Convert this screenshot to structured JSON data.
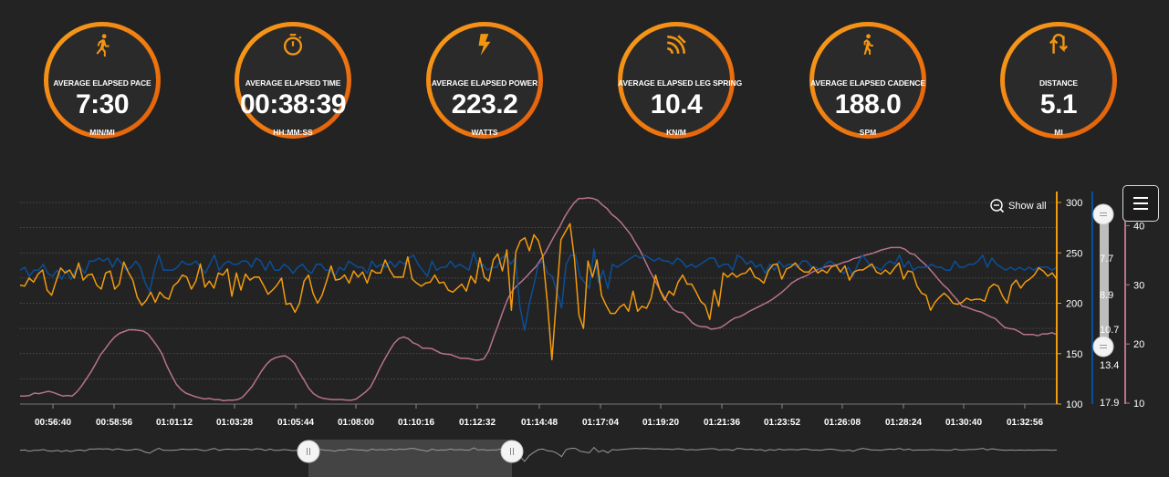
{
  "colors": {
    "accent": "#f29511",
    "pace_series": "#0a4f9a",
    "power_series": "#f29b0f",
    "cadence_series": "#b8728e",
    "grid": "#5a5a5a"
  },
  "metrics": [
    {
      "icon": "runner-icon",
      "label": "AVERAGE ELAPSED PACE",
      "value": "7:30",
      "unit": "MIN/MI"
    },
    {
      "icon": "stopwatch-icon",
      "label": "AVERAGE ELAPSED TIME",
      "value": "00:38:39",
      "unit": "HH:MM:SS"
    },
    {
      "icon": "lightning-icon",
      "label": "AVERAGE ELAPSED POWER",
      "value": "223.2",
      "unit": "WATTS"
    },
    {
      "icon": "signal-arcs-icon",
      "label": "AVERAGE ELAPSED LEG SPRING",
      "value": "10.4",
      "unit": "KN/M"
    },
    {
      "icon": "walker-icon",
      "label": "AVERAGE ELAPSED CADENCE",
      "value": "188.0",
      "unit": "SPM"
    },
    {
      "icon": "swap-arrows-icon",
      "label": "DISTANCE",
      "value": "5.1",
      "unit": "MI"
    }
  ],
  "chart": {
    "show_all_label": "Show all",
    "menu_icon": "hamburger-menu-icon"
  },
  "chart_data": {
    "type": "line",
    "x_ticks": [
      "00:56:40",
      "00:58:56",
      "01:01:12",
      "01:03:28",
      "01:05:44",
      "01:08:00",
      "01:10:16",
      "01:12:32",
      "01:14:48",
      "01:17:04",
      "01:19:20",
      "01:21:36",
      "01:23:52",
      "01:26:08",
      "01:28:24",
      "01:30:40",
      "01:32:56"
    ],
    "y_axes": [
      {
        "side": "right",
        "color": "orange",
        "ticks": [
          "300",
          "250",
          "200",
          "150",
          "100"
        ],
        "range": [
          100,
          300
        ]
      },
      {
        "side": "right",
        "color": "blue",
        "ticks": [
          "7.7",
          "8.9",
          "10.7",
          "13.4",
          "17.9"
        ]
      },
      {
        "side": "right",
        "color": "pink",
        "ticks": [
          "40",
          "30",
          "20",
          "10"
        ],
        "range": [
          10,
          45
        ]
      }
    ],
    "grid": true,
    "series": [
      {
        "axis": "orange",
        "values": [
          218,
          217,
          225,
          221,
          229,
          233,
          213,
          208,
          222,
          235,
          230,
          233,
          225,
          240,
          223,
          228,
          229,
          218,
          214,
          230,
          232,
          214,
          219,
          241,
          231,
          223,
          206,
          198,
          203,
          211,
          201,
          211,
          206,
          204,
          217,
          221,
          228,
          226,
          214,
          222,
          239,
          216,
          222,
          215,
          230,
          228,
          234,
          207,
          230,
          213,
          229,
          223,
          226,
          226,
          218,
          209,
          213,
          218,
          225,
          199,
          200,
          191,
          200,
          222,
          228,
          210,
          200,
          208,
          222,
          237,
          223,
          224,
          228,
          220,
          232,
          226,
          231,
          220,
          233,
          230,
          230,
          243,
          233,
          226,
          226,
          226,
          246,
          224,
          220,
          217,
          220,
          221,
          228,
          220,
          221,
          213,
          211,
          215,
          219,
          212,
          227,
          220,
          245,
          226,
          222,
          243,
          249,
          232,
          253,
          193,
          251,
          262,
          265,
          252,
          268,
          262,
          246,
          200,
          144,
          205,
          263,
          271,
          279,
          244,
          188,
          175,
          242,
          226,
          243,
          208,
          198,
          190,
          190,
          196,
          199,
          192,
          212,
          192,
          197,
          195,
          205,
          228,
          212,
          203,
          212,
          208,
          221,
          228,
          219,
          219,
          211,
          202,
          198,
          184,
          213,
          197,
          230,
          226,
          230,
          226,
          229,
          230,
          235,
          226,
          224,
          220,
          232,
          238,
          239,
          224,
          234,
          236,
          240,
          234,
          231,
          231,
          236,
          230,
          233,
          230,
          236,
          238,
          231,
          237,
          223,
          231,
          233,
          233,
          236,
          239,
          231,
          229,
          233,
          229,
          235,
          240,
          224,
          232,
          231,
          217,
          210,
          208,
          193,
          201,
          206,
          210,
          206,
          200,
          199,
          201,
          205,
          203,
          204,
          204,
          202,
          215,
          219,
          217,
          207,
          200,
          218,
          223,
          215,
          221,
          224,
          228,
          235,
          232,
          227,
          230,
          224
        ]
      },
      {
        "axis": "blue",
        "values": [
          8.1,
          8.0,
          8.3,
          8.1,
          8.1,
          7.9,
          8.2,
          8.3,
          8.1,
          8.4,
          8.1,
          8.4,
          8.1,
          8.0,
          8.2,
          7.8,
          7.8,
          7.7,
          7.8,
          7.7,
          8.0,
          7.7,
          7.9,
          8.1,
          8.0,
          7.8,
          8.0,
          8.5,
          8.8,
          8.1,
          7.6,
          8.1,
          8.1,
          8.1,
          8.0,
          7.8,
          7.9,
          7.9,
          7.8,
          8.0,
          8.2,
          7.9,
          7.6,
          8.1,
          7.9,
          7.8,
          7.9,
          7.9,
          7.8,
          7.8,
          8.0,
          7.7,
          7.8,
          8.1,
          7.8,
          8.1,
          8.1,
          7.9,
          8.0,
          8.2,
          8.0,
          7.9,
          8.1,
          8.2,
          7.9,
          7.9,
          8.1,
          8.1,
          8.3,
          8.0,
          8.1,
          7.8,
          7.9,
          8.0,
          8.0,
          8.2,
          7.8,
          8.0,
          7.9,
          8.0,
          7.8,
          8.0,
          7.8,
          7.9,
          7.7,
          7.6,
          7.9,
          8.1,
          8.3,
          7.8,
          8.1,
          8.0,
          8.0,
          7.8,
          8.0,
          7.9,
          8.0,
          8.1,
          7.5,
          8.0,
          7.9,
          8.1,
          8.0,
          8.0,
          7.7,
          7.6,
          7.9,
          7.7,
          9.5,
          10.8,
          9.4,
          8.6,
          7.9,
          7.8,
          8.2,
          8.3,
          8.8,
          9.6,
          7.9,
          7.6,
          7.6,
          8.3,
          8.5,
          8.7,
          7.4,
          8.5,
          8.1,
          8.7,
          7.9,
          8.0,
          7.9,
          7.8,
          7.7,
          7.6,
          7.7,
          7.6,
          7.7,
          7.8,
          7.7,
          7.8,
          7.8,
          7.9,
          7.7,
          7.8,
          8.0,
          7.9,
          8.0,
          7.9,
          7.8,
          7.7,
          7.7,
          8.0,
          7.9,
          7.9,
          8.1,
          7.6,
          7.7,
          7.9,
          7.8,
          8.0,
          7.9,
          8.2,
          7.9,
          8.1,
          7.8,
          8.0,
          7.9,
          7.9,
          8.0,
          7.8,
          7.8,
          8.0,
          8.0,
          8.1,
          7.9,
          7.8,
          7.9,
          8.1,
          8.2,
          8.0,
          8.3,
          7.9,
          7.6,
          7.8,
          8.0,
          8.0,
          8.1,
          7.9,
          7.8,
          7.9,
          7.6,
          8.0,
          7.8,
          8.1,
          8.0,
          8.0,
          8.0,
          7.9,
          8.0,
          8.0,
          8.1,
          8.1,
          7.8,
          8.0,
          8.0,
          7.9,
          7.9,
          7.8,
          7.6,
          8.0,
          7.7,
          7.9,
          8.0,
          8.1,
          8.0,
          8.1,
          8.0,
          8.1,
          8.0,
          8.1,
          8.0,
          8.0,
          8.0,
          8.1,
          8.0
        ]
      },
      {
        "axis": "pink",
        "values": [
          11.2,
          11.2,
          11.3,
          11.7,
          11.6,
          11.8,
          12.0,
          11.8,
          11.5,
          11.2,
          11.3,
          11.2,
          11.9,
          12.9,
          14.1,
          15.3,
          16.7,
          18.2,
          19.2,
          20.3,
          21.2,
          21.8,
          22.1,
          22.4,
          22.4,
          22.3,
          22.2,
          21.7,
          20.7,
          19.6,
          18.3,
          16.3,
          14.7,
          13.2,
          12.3,
          11.7,
          11.4,
          11.1,
          10.9,
          10.7,
          10.8,
          10.6,
          10.6,
          10.4,
          10.5,
          10.5,
          10.6,
          11.0,
          11.9,
          12.8,
          14.1,
          15.4,
          16.5,
          17.3,
          17.7,
          17.9,
          18.0,
          17.5,
          16.7,
          15.2,
          13.9,
          12.5,
          11.6,
          11.1,
          10.8,
          10.7,
          10.6,
          10.6,
          10.6,
          10.5,
          10.5,
          10.7,
          11.3,
          11.9,
          12.7,
          14.2,
          15.9,
          17.4,
          18.8,
          20.1,
          20.9,
          21.2,
          20.9,
          20.2,
          19.9,
          19.3,
          19.3,
          19.2,
          18.8,
          18.4,
          18.3,
          18.2,
          17.9,
          17.6,
          17.6,
          17.5,
          17.3,
          17.3,
          17.5,
          18.8,
          21.1,
          23.2,
          25.5,
          27.6,
          29.0,
          29.9,
          30.6,
          31.4,
          32.3,
          33.1,
          34.3,
          35.5,
          37.0,
          38.5,
          39.8,
          41.4,
          42.7,
          43.8,
          44.6,
          44.6,
          44.7,
          44.6,
          44.3,
          43.5,
          42.9,
          41.9,
          41.3,
          40.5,
          39.5,
          38.5,
          37.1,
          35.8,
          34.1,
          32.4,
          30.9,
          29.4,
          28.0,
          26.8,
          25.8,
          25.4,
          25.3,
          24.5,
          23.6,
          23.1,
          22.9,
          22.9,
          22.5,
          22.6,
          22.8,
          23.3,
          23.9,
          24.4,
          24.6,
          25.0,
          25.5,
          25.9,
          26.3,
          26.7,
          27.1,
          27.6,
          28.2,
          28.8,
          29.5,
          30.3,
          30.8,
          31.2,
          31.5,
          32.0,
          32.4,
          32.7,
          33.0,
          33.2,
          33.2,
          33.5,
          33.8,
          34.0,
          34.4,
          34.6,
          34.9,
          35.1,
          35.3,
          35.6,
          35.9,
          36.1,
          36.3,
          36.3,
          36.3,
          36.0,
          35.3,
          35.1,
          34.3,
          33.6,
          32.8,
          31.9,
          30.9,
          30.0,
          29.3,
          28.3,
          27.4,
          26.4,
          26.2,
          25.9,
          25.6,
          25.4,
          25.0,
          24.6,
          24.3,
          23.5,
          22.8,
          22.6,
          22.5,
          22.1,
          21.6,
          21.6,
          21.6,
          21.4,
          21.7,
          21.7,
          21.9,
          21.6
        ]
      }
    ]
  }
}
